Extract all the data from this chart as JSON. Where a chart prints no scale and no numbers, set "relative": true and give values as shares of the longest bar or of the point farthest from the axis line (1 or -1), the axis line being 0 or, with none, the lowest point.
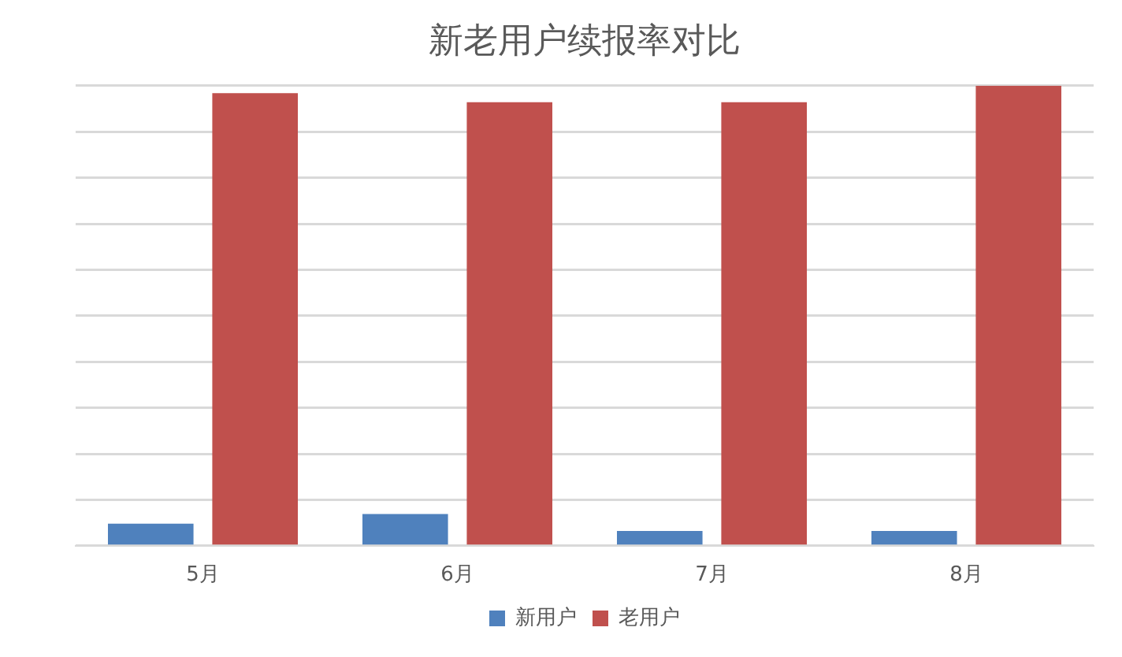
{
  "chart_data": {
    "type": "bar",
    "title": "新老用户续报率对比",
    "categories": [
      "5月",
      "6月",
      "7月",
      "8月"
    ],
    "relative": true,
    "grid": "y",
    "legend": "bottom",
    "series": [
      {
        "name": "新用户",
        "color": "#4f81bd",
        "values": [
          0.048,
          0.069,
          0.032,
          0.032
        ]
      },
      {
        "name": "老用户",
        "color": "#c0504d",
        "values": [
          0.984,
          0.964,
          0.964,
          1
        ]
      }
    ]
  }
}
